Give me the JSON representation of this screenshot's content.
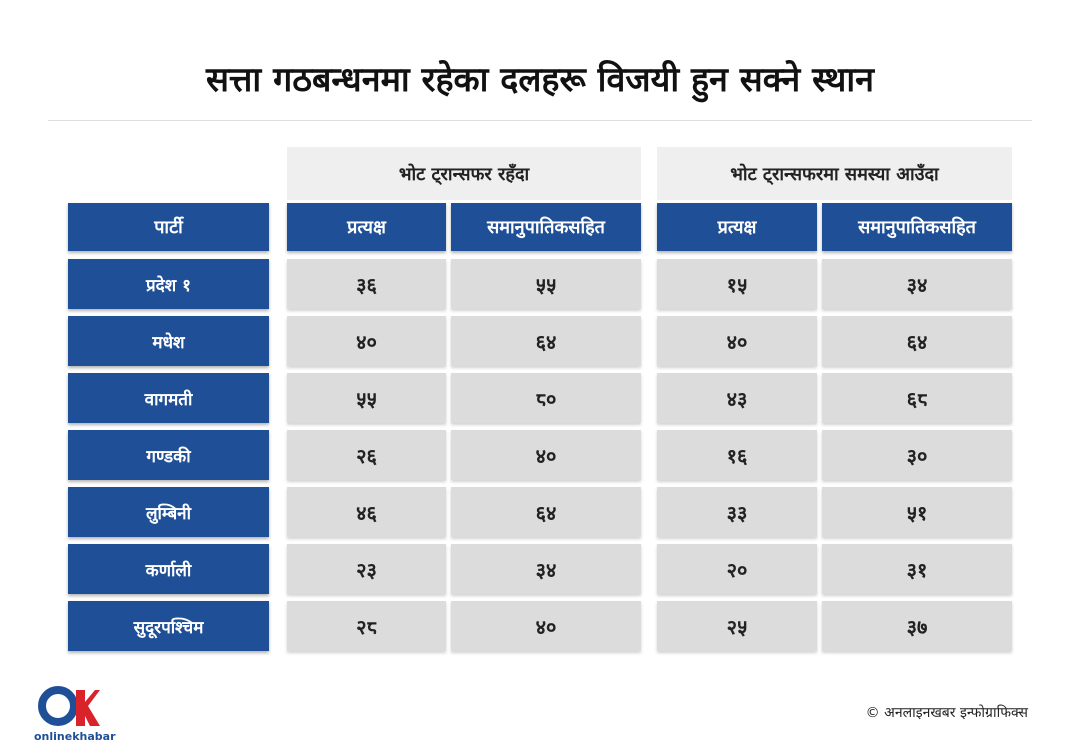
{
  "title": "सत्ता गठबन्धनमा रहेका दलहरू विजयी हुन सक्ने स्थान",
  "table": {
    "groups": [
      "भोट ट्रान्सफर रहँदा",
      "भोट ट्रान्सफरमा समस्या आउँदा"
    ],
    "columns": [
      "पार्टी",
      "प्रत्यक्ष",
      "समानुपातिकसहित",
      "प्रत्यक्ष",
      "समानुपातिकसहित"
    ],
    "rows": [
      [
        "प्रदेश १",
        "३६",
        "५५",
        "१५",
        "३४"
      ],
      [
        "मधेश",
        "४०",
        "६४",
        "४०",
        "६४"
      ],
      [
        "वागमती",
        "५५",
        "८०",
        "४३",
        "६८"
      ],
      [
        "गण्डकी",
        "२६",
        "४०",
        "१६",
        "३०"
      ],
      [
        "लुम्बिनी",
        "४६",
        "६४",
        "३३",
        "५१"
      ],
      [
        "कर्णाली",
        "२३",
        "३४",
        "२०",
        "३१"
      ],
      [
        "सुदूरपश्चिम",
        "२८",
        "४०",
        "२५",
        "३७"
      ]
    ]
  },
  "footer": {
    "logo": "onlinekhabar",
    "credit": "© अनलाइनखबर इन्फोग्राफिक्स"
  }
}
